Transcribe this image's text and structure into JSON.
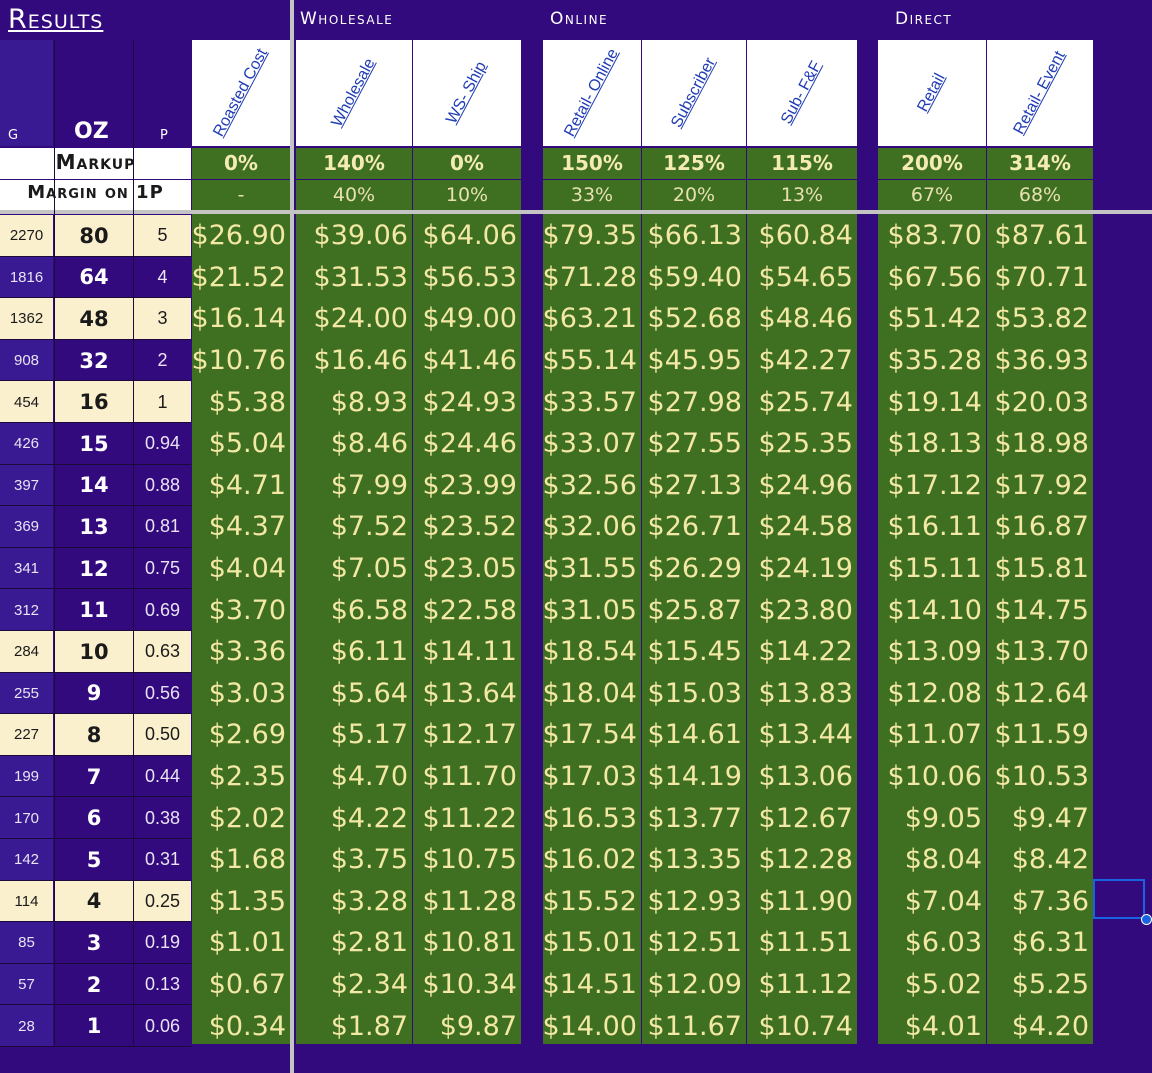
{
  "sheet": {
    "title": "Results",
    "groups": {
      "wholesale": "Wholesale",
      "online": "Online",
      "direct": "Direct"
    },
    "col_headers": {
      "g": "G",
      "oz": "OZ",
      "p": "P"
    },
    "columns": [
      "Roasted Cost",
      "Wholesale",
      "WS- Ship",
      "Retail- Online",
      "Subscriber",
      "Sub- F&F",
      "Retail",
      "Retail- Event"
    ],
    "markup_label": "Markup",
    "margin_label": "Margin on 1P",
    "markups": [
      "0%",
      "140%",
      "0%",
      "150%",
      "125%",
      "115%",
      "200%",
      "314%"
    ],
    "margins": [
      "-",
      "40%",
      "10%",
      "33%",
      "20%",
      "13%",
      "67%",
      "68%"
    ],
    "rows": [
      {
        "g": "2270",
        "oz": "80",
        "p": "5",
        "cream": true,
        "values": [
          "$26.90",
          "$39.06",
          "$64.06",
          "$79.35",
          "$66.13",
          "$60.84",
          "$83.70",
          "$87.61"
        ]
      },
      {
        "g": "1816",
        "oz": "64",
        "p": "4",
        "cream": false,
        "values": [
          "$21.52",
          "$31.53",
          "$56.53",
          "$71.28",
          "$59.40",
          "$54.65",
          "$67.56",
          "$70.71"
        ]
      },
      {
        "g": "1362",
        "oz": "48",
        "p": "3",
        "cream": true,
        "values": [
          "$16.14",
          "$24.00",
          "$49.00",
          "$63.21",
          "$52.68",
          "$48.46",
          "$51.42",
          "$53.82"
        ]
      },
      {
        "g": "908",
        "oz": "32",
        "p": "2",
        "cream": false,
        "values": [
          "$10.76",
          "$16.46",
          "$41.46",
          "$55.14",
          "$45.95",
          "$42.27",
          "$35.28",
          "$36.93"
        ]
      },
      {
        "g": "454",
        "oz": "16",
        "p": "1",
        "cream": true,
        "values": [
          "$5.38",
          "$8.93",
          "$24.93",
          "$33.57",
          "$27.98",
          "$25.74",
          "$19.14",
          "$20.03"
        ]
      },
      {
        "g": "426",
        "oz": "15",
        "p": "0.94",
        "cream": false,
        "values": [
          "$5.04",
          "$8.46",
          "$24.46",
          "$33.07",
          "$27.55",
          "$25.35",
          "$18.13",
          "$18.98"
        ]
      },
      {
        "g": "397",
        "oz": "14",
        "p": "0.88",
        "cream": false,
        "values": [
          "$4.71",
          "$7.99",
          "$23.99",
          "$32.56",
          "$27.13",
          "$24.96",
          "$17.12",
          "$17.92"
        ]
      },
      {
        "g": "369",
        "oz": "13",
        "p": "0.81",
        "cream": false,
        "values": [
          "$4.37",
          "$7.52",
          "$23.52",
          "$32.06",
          "$26.71",
          "$24.58",
          "$16.11",
          "$16.87"
        ]
      },
      {
        "g": "341",
        "oz": "12",
        "p": "0.75",
        "cream": false,
        "values": [
          "$4.04",
          "$7.05",
          "$23.05",
          "$31.55",
          "$26.29",
          "$24.19",
          "$15.11",
          "$15.81"
        ]
      },
      {
        "g": "312",
        "oz": "11",
        "p": "0.69",
        "cream": false,
        "values": [
          "$3.70",
          "$6.58",
          "$22.58",
          "$31.05",
          "$25.87",
          "$23.80",
          "$14.10",
          "$14.75"
        ]
      },
      {
        "g": "284",
        "oz": "10",
        "p": "0.63",
        "cream": true,
        "values": [
          "$3.36",
          "$6.11",
          "$14.11",
          "$18.54",
          "$15.45",
          "$14.22",
          "$13.09",
          "$13.70"
        ]
      },
      {
        "g": "255",
        "oz": "9",
        "p": "0.56",
        "cream": false,
        "values": [
          "$3.03",
          "$5.64",
          "$13.64",
          "$18.04",
          "$15.03",
          "$13.83",
          "$12.08",
          "$12.64"
        ]
      },
      {
        "g": "227",
        "oz": "8",
        "p": "0.50",
        "cream": true,
        "values": [
          "$2.69",
          "$5.17",
          "$12.17",
          "$17.54",
          "$14.61",
          "$13.44",
          "$11.07",
          "$11.59"
        ]
      },
      {
        "g": "199",
        "oz": "7",
        "p": "0.44",
        "cream": false,
        "values": [
          "$2.35",
          "$4.70",
          "$11.70",
          "$17.03",
          "$14.19",
          "$13.06",
          "$10.06",
          "$10.53"
        ]
      },
      {
        "g": "170",
        "oz": "6",
        "p": "0.38",
        "cream": false,
        "values": [
          "$2.02",
          "$4.22",
          "$11.22",
          "$16.53",
          "$13.77",
          "$12.67",
          "$9.05",
          "$9.47"
        ]
      },
      {
        "g": "142",
        "oz": "5",
        "p": "0.31",
        "cream": false,
        "values": [
          "$1.68",
          "$3.75",
          "$10.75",
          "$16.02",
          "$13.35",
          "$12.28",
          "$8.04",
          "$8.42"
        ]
      },
      {
        "g": "114",
        "oz": "4",
        "p": "0.25",
        "cream": true,
        "values": [
          "$1.35",
          "$3.28",
          "$11.28",
          "$15.52",
          "$12.93",
          "$11.90",
          "$7.04",
          "$7.36"
        ]
      },
      {
        "g": "85",
        "oz": "3",
        "p": "0.19",
        "cream": false,
        "values": [
          "$1.01",
          "$2.81",
          "$10.81",
          "$15.01",
          "$12.51",
          "$11.51",
          "$6.03",
          "$6.31"
        ]
      },
      {
        "g": "57",
        "oz": "2",
        "p": "0.13",
        "cream": false,
        "values": [
          "$0.67",
          "$2.34",
          "$10.34",
          "$14.51",
          "$12.09",
          "$11.12",
          "$5.02",
          "$5.25"
        ]
      },
      {
        "g": "28",
        "oz": "1",
        "p": "0.06",
        "cream": false,
        "values": [
          "$0.34",
          "$1.87",
          "$9.87",
          "$14.00",
          "$11.67",
          "$10.74",
          "$4.01",
          "$4.20"
        ]
      }
    ],
    "colors": {
      "background": "#33097e",
      "green": "#3f7022",
      "cream": "#fbf0ce",
      "value_text": "#f3e8a4",
      "header_link": "#1f3cb5",
      "selection": "#1a63e0"
    }
  }
}
